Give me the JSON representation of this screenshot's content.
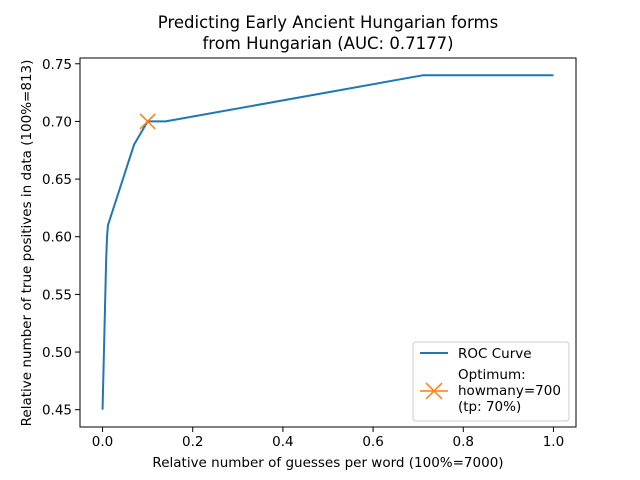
{
  "chart_data": {
    "type": "line",
    "title_line1": "Predicting Early Ancient Hungarian forms",
    "title_line2": "from Hungarian (AUC: 0.7177)",
    "xlabel": "Relative number of guesses per word (100%=7000)",
    "ylabel": "Relative number of true positives in data (100%=813)",
    "xlim": [
      -0.05,
      1.05
    ],
    "ylim": [
      0.435,
      0.755
    ],
    "x_ticks": [
      0.0,
      0.2,
      0.4,
      0.6,
      0.8,
      1.0
    ],
    "x_tick_labels": [
      "0.0",
      "0.2",
      "0.4",
      "0.6",
      "0.8",
      "1.0"
    ],
    "y_ticks": [
      0.45,
      0.5,
      0.55,
      0.6,
      0.65,
      0.7,
      0.75
    ],
    "y_tick_labels": [
      "0.45",
      "0.50",
      "0.55",
      "0.60",
      "0.65",
      "0.70",
      "0.75"
    ],
    "grid": false,
    "legend_position": "bottom-right",
    "series": [
      {
        "name": "ROC Curve",
        "color": "#1f77b4",
        "x": [
          0.0,
          0.008,
          0.01,
          0.012,
          0.07,
          0.1,
          0.12,
          0.14,
          0.71,
          1.0
        ],
        "y": [
          0.45,
          0.58,
          0.6,
          0.61,
          0.68,
          0.7,
          0.7,
          0.7,
          0.74,
          0.74
        ]
      }
    ],
    "optimum": {
      "x": 0.1,
      "y": 0.7,
      "marker": "x",
      "color": "#ff7f0e",
      "label_lines": [
        "Optimum:",
        "howmany=700",
        "(tp: 70%)"
      ]
    }
  }
}
